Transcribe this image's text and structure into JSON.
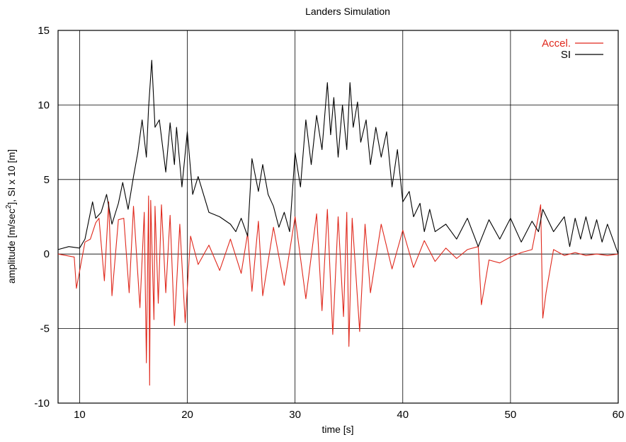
{
  "chart_data": {
    "type": "line",
    "title": "Landers Simulation",
    "xlabel": "time [s]",
    "ylabel_parts": [
      "amplitude [m/sec",
      "2",
      "], SI x 10 [m]"
    ],
    "xlim": [
      8,
      60
    ],
    "ylim": [
      -10,
      15
    ],
    "x_ticks": [
      10,
      20,
      30,
      40,
      50,
      60
    ],
    "y_ticks": [
      -10,
      -5,
      0,
      5,
      10,
      15
    ],
    "x_tick_labels": [
      "10",
      "20",
      "30",
      "40",
      "50",
      "60"
    ],
    "y_tick_labels": [
      "-10",
      "-5",
      "0",
      "5",
      "10",
      "15"
    ],
    "grid": true,
    "legend_position": "top-right",
    "series": [
      {
        "name": "Accel.",
        "color": "#e0281c",
        "x": [
          8.0,
          9.5,
          9.7,
          10.5,
          11.0,
          11.5,
          11.8,
          12.3,
          12.7,
          13.0,
          13.6,
          14.1,
          14.6,
          15.0,
          15.6,
          16.0,
          16.2,
          16.4,
          16.5,
          16.6,
          16.9,
          17.0,
          17.3,
          17.6,
          18.0,
          18.4,
          18.8,
          19.3,
          19.8,
          20.3,
          21.0,
          22.0,
          23.0,
          24.0,
          25.0,
          25.6,
          26.0,
          26.6,
          27.0,
          28.0,
          29.0,
          30.0,
          31.0,
          32.0,
          32.5,
          33.0,
          33.5,
          34.0,
          34.5,
          34.8,
          35.0,
          35.3,
          36.0,
          36.5,
          37.0,
          38.0,
          39.0,
          40.0,
          41.0,
          42.0,
          43.0,
          44.0,
          45.0,
          46.0,
          47.0,
          47.3,
          48.0,
          49.0,
          50.0,
          51.0,
          52.0,
          52.8,
          53.0,
          53.3,
          54.0,
          55.0,
          56.0,
          57.0,
          58.0,
          59.0,
          60.0
        ],
        "y": [
          0,
          -0.2,
          -2.3,
          0.8,
          1.0,
          2.1,
          2.4,
          -1.8,
          3.5,
          -2.8,
          2.3,
          2.4,
          -2.6,
          3.2,
          -3.6,
          2.8,
          -7.3,
          3.9,
          -8.8,
          3.6,
          -4.4,
          3.2,
          -3.3,
          3.3,
          -2.6,
          2.6,
          -4.8,
          2.0,
          -4.6,
          1.2,
          -0.7,
          0.6,
          -1.1,
          1.0,
          -1.3,
          1.4,
          -2.5,
          2.2,
          -2.8,
          1.8,
          -2.1,
          2.5,
          -3.0,
          2.7,
          -3.8,
          3.0,
          -5.4,
          2.5,
          -4.2,
          2.8,
          -6.2,
          2.4,
          -5.2,
          2.0,
          -2.6,
          2.0,
          -1.0,
          1.6,
          -0.9,
          0.9,
          -0.5,
          0.4,
          -0.3,
          0.3,
          0.5,
          -3.4,
          -0.4,
          -0.6,
          -0.2,
          0.1,
          0.3,
          3.3,
          -4.3,
          -2.6,
          0.3,
          -0.1,
          0.1,
          -0.1,
          0.0,
          -0.1,
          0.0
        ]
      },
      {
        "name": "SI",
        "color": "#000000",
        "x": [
          8.0,
          9.0,
          10.0,
          10.5,
          11.2,
          11.5,
          12.0,
          12.5,
          13.0,
          13.6,
          14.0,
          14.5,
          15.0,
          15.4,
          15.8,
          16.2,
          16.4,
          16.7,
          17.0,
          17.4,
          18.0,
          18.4,
          18.8,
          19.0,
          19.5,
          20.0,
          20.5,
          21.0,
          22.0,
          23.0,
          24.0,
          24.5,
          25.0,
          25.6,
          26.0,
          26.6,
          27.0,
          27.5,
          28.0,
          28.5,
          29.0,
          29.5,
          30.0,
          30.5,
          31.0,
          31.5,
          32.0,
          32.5,
          33.0,
          33.3,
          33.6,
          34.0,
          34.4,
          34.8,
          35.1,
          35.4,
          35.8,
          36.1,
          36.6,
          37.0,
          37.5,
          38.0,
          38.5,
          39.0,
          39.5,
          40.0,
          40.6,
          41.0,
          41.6,
          42.0,
          42.5,
          43.0,
          44.0,
          45.0,
          46.0,
          47.0,
          48.0,
          49.0,
          50.0,
          51.0,
          52.0,
          52.6,
          53.0,
          54.0,
          55.0,
          55.5,
          56.0,
          56.5,
          57.0,
          57.5,
          58.0,
          58.5,
          59.0,
          60.0
        ],
        "y": [
          0.3,
          0.5,
          0.4,
          1.0,
          3.5,
          2.4,
          2.8,
          4.0,
          2.0,
          3.4,
          4.8,
          3.0,
          5.2,
          6.8,
          9.0,
          6.5,
          9.8,
          13.0,
          8.5,
          9.0,
          5.5,
          8.8,
          6.0,
          8.5,
          4.5,
          8.2,
          4.0,
          5.2,
          2.8,
          2.5,
          2.0,
          1.5,
          2.4,
          1.2,
          6.4,
          4.2,
          6.0,
          4.0,
          3.2,
          1.8,
          2.8,
          1.5,
          6.8,
          4.5,
          9.0,
          6.0,
          9.3,
          7.0,
          11.5,
          8.0,
          10.5,
          6.5,
          10.0,
          7.0,
          11.5,
          8.5,
          10.2,
          7.5,
          9.0,
          6.0,
          8.5,
          6.5,
          8.2,
          4.5,
          7.0,
          3.5,
          4.2,
          2.5,
          3.4,
          1.5,
          3.0,
          1.5,
          2.0,
          1.0,
          2.4,
          0.5,
          2.3,
          1.0,
          2.4,
          0.8,
          2.2,
          1.5,
          3.0,
          1.5,
          2.5,
          0.5,
          2.4,
          1.0,
          2.5,
          1.0,
          2.3,
          0.8,
          2.0,
          0.0
        ]
      }
    ]
  }
}
